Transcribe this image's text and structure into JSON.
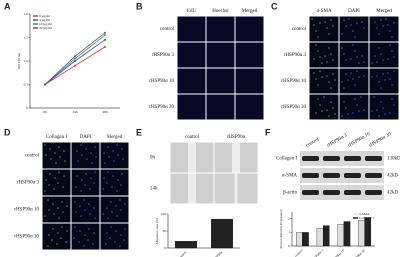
{
  "panels": {
    "A": {
      "label": "A"
    },
    "B": {
      "label": "B",
      "columns": [
        "EdU",
        "Hoechst",
        "Merged"
      ],
      "rows": [
        "control",
        "rHSP90α 3",
        "rHSP90α 10",
        "rHSP90α 30"
      ]
    },
    "C": {
      "label": "C",
      "columns": [
        "α-SMA",
        "DAPI",
        "Merged"
      ],
      "rows": [
        "control",
        "rHSP90α 3",
        "rHSP90α 10",
        "rHSP90α 30"
      ]
    },
    "D": {
      "label": "D",
      "columns": [
        "Collagen I",
        "DAPI",
        "Merged"
      ],
      "rows": [
        "control",
        "rHSP90α 3",
        "rHSP90α 10",
        "rHSP90α 30"
      ]
    },
    "E": {
      "label": "E",
      "columns": [
        "control",
        "rHSP90α"
      ],
      "rows": [
        "0h",
        "24h"
      ]
    },
    "F": {
      "label": "F",
      "columns": [
        "control",
        "rHSP90α 3",
        "rHSP90α 10",
        "rHSP90α 30"
      ],
      "rows": [
        "Collagen I",
        "α-SMA",
        "β-actin"
      ],
      "sizes": [
        "130kD",
        "42kD",
        "42kD"
      ]
    }
  },
  "chart_data": [
    {
      "type": "line",
      "y_label": "OD 450 nm",
      "categories": [
        "0h",
        "24h",
        "48h"
      ],
      "series": [
        {
          "name": "0 μg/ml",
          "color": "#e03030",
          "values": [
            0.5,
            0.9,
            1.3
          ]
        },
        {
          "name": "3 μg/ml",
          "color": "#3050d0",
          "values": [
            0.5,
            1.0,
            1.45
          ]
        },
        {
          "name": "10 μg/ml",
          "color": "#30a040",
          "values": [
            0.5,
            1.05,
            1.55
          ]
        },
        {
          "name": "30 μg/ml",
          "color": "#8040a0",
          "values": [
            0.5,
            1.1,
            1.6
          ]
        }
      ],
      "ylim": [
        0,
        2
      ],
      "yticks": [
        0,
        0.5,
        {
          "value": 1,
          "label": "1.0"
        },
        1.5,
        {
          "value": 2,
          "label": "2.0"
        }
      ],
      "legend": "top-left"
    },
    {
      "type": "bar",
      "y_label": "Migration rate (%)",
      "categories": [
        "control",
        "rHSP90α"
      ],
      "series": [
        {
          "name": null,
          "color": "#222222",
          "values": [
            20,
            85
          ]
        }
      ],
      "ylim": [
        0,
        100
      ],
      "yticks": [
        0,
        50,
        100
      ]
    },
    {
      "type": "bar",
      "y_label": "Protein Relative Expression",
      "categories": [
        "control",
        "rHSP90α 3",
        "rHSP90α 10",
        "rHSP90α 30"
      ],
      "series": [
        {
          "name": "α-SMA",
          "color": "#dddddd",
          "values": [
            1,
            1.3,
            1.6,
            1.9
          ]
        },
        {
          "name": "Collagen I",
          "color": "#222222",
          "values": [
            1,
            1.5,
            1.8,
            2.1
          ]
        }
      ],
      "ylim": [
        0,
        2.5
      ],
      "yticks": [
        0,
        1,
        2
      ],
      "legend": "top-right"
    }
  ]
}
